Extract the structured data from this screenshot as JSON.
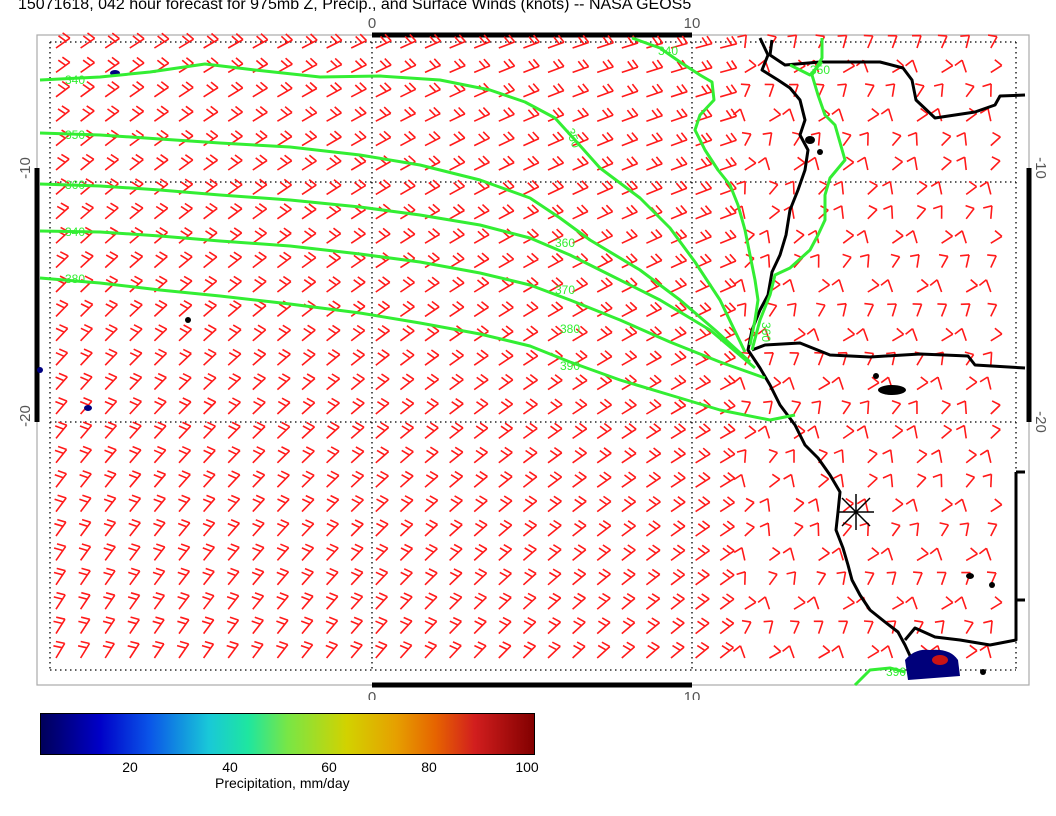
{
  "title": "15071618, 042 hour forecast for 975mb Z, Precip., and Surface Winds (knots) -- NASA GEOS5",
  "axes": {
    "top_ticks": [
      "0",
      "10"
    ],
    "bottom_ticks": [
      "0",
      "10"
    ],
    "left_ticks": [
      "-10",
      "-20"
    ],
    "right_ticks": [
      "-10",
      "-20"
    ]
  },
  "contours": {
    "color": "#33ee33",
    "labels": [
      "340",
      "350",
      "360",
      "370",
      "380",
      "390"
    ]
  },
  "wind_barb_color": "#ff1a1a",
  "colorbar": {
    "ticks": [
      "20",
      "40",
      "60",
      "80",
      "100"
    ],
    "label": "Precipitation, mm/day"
  }
}
